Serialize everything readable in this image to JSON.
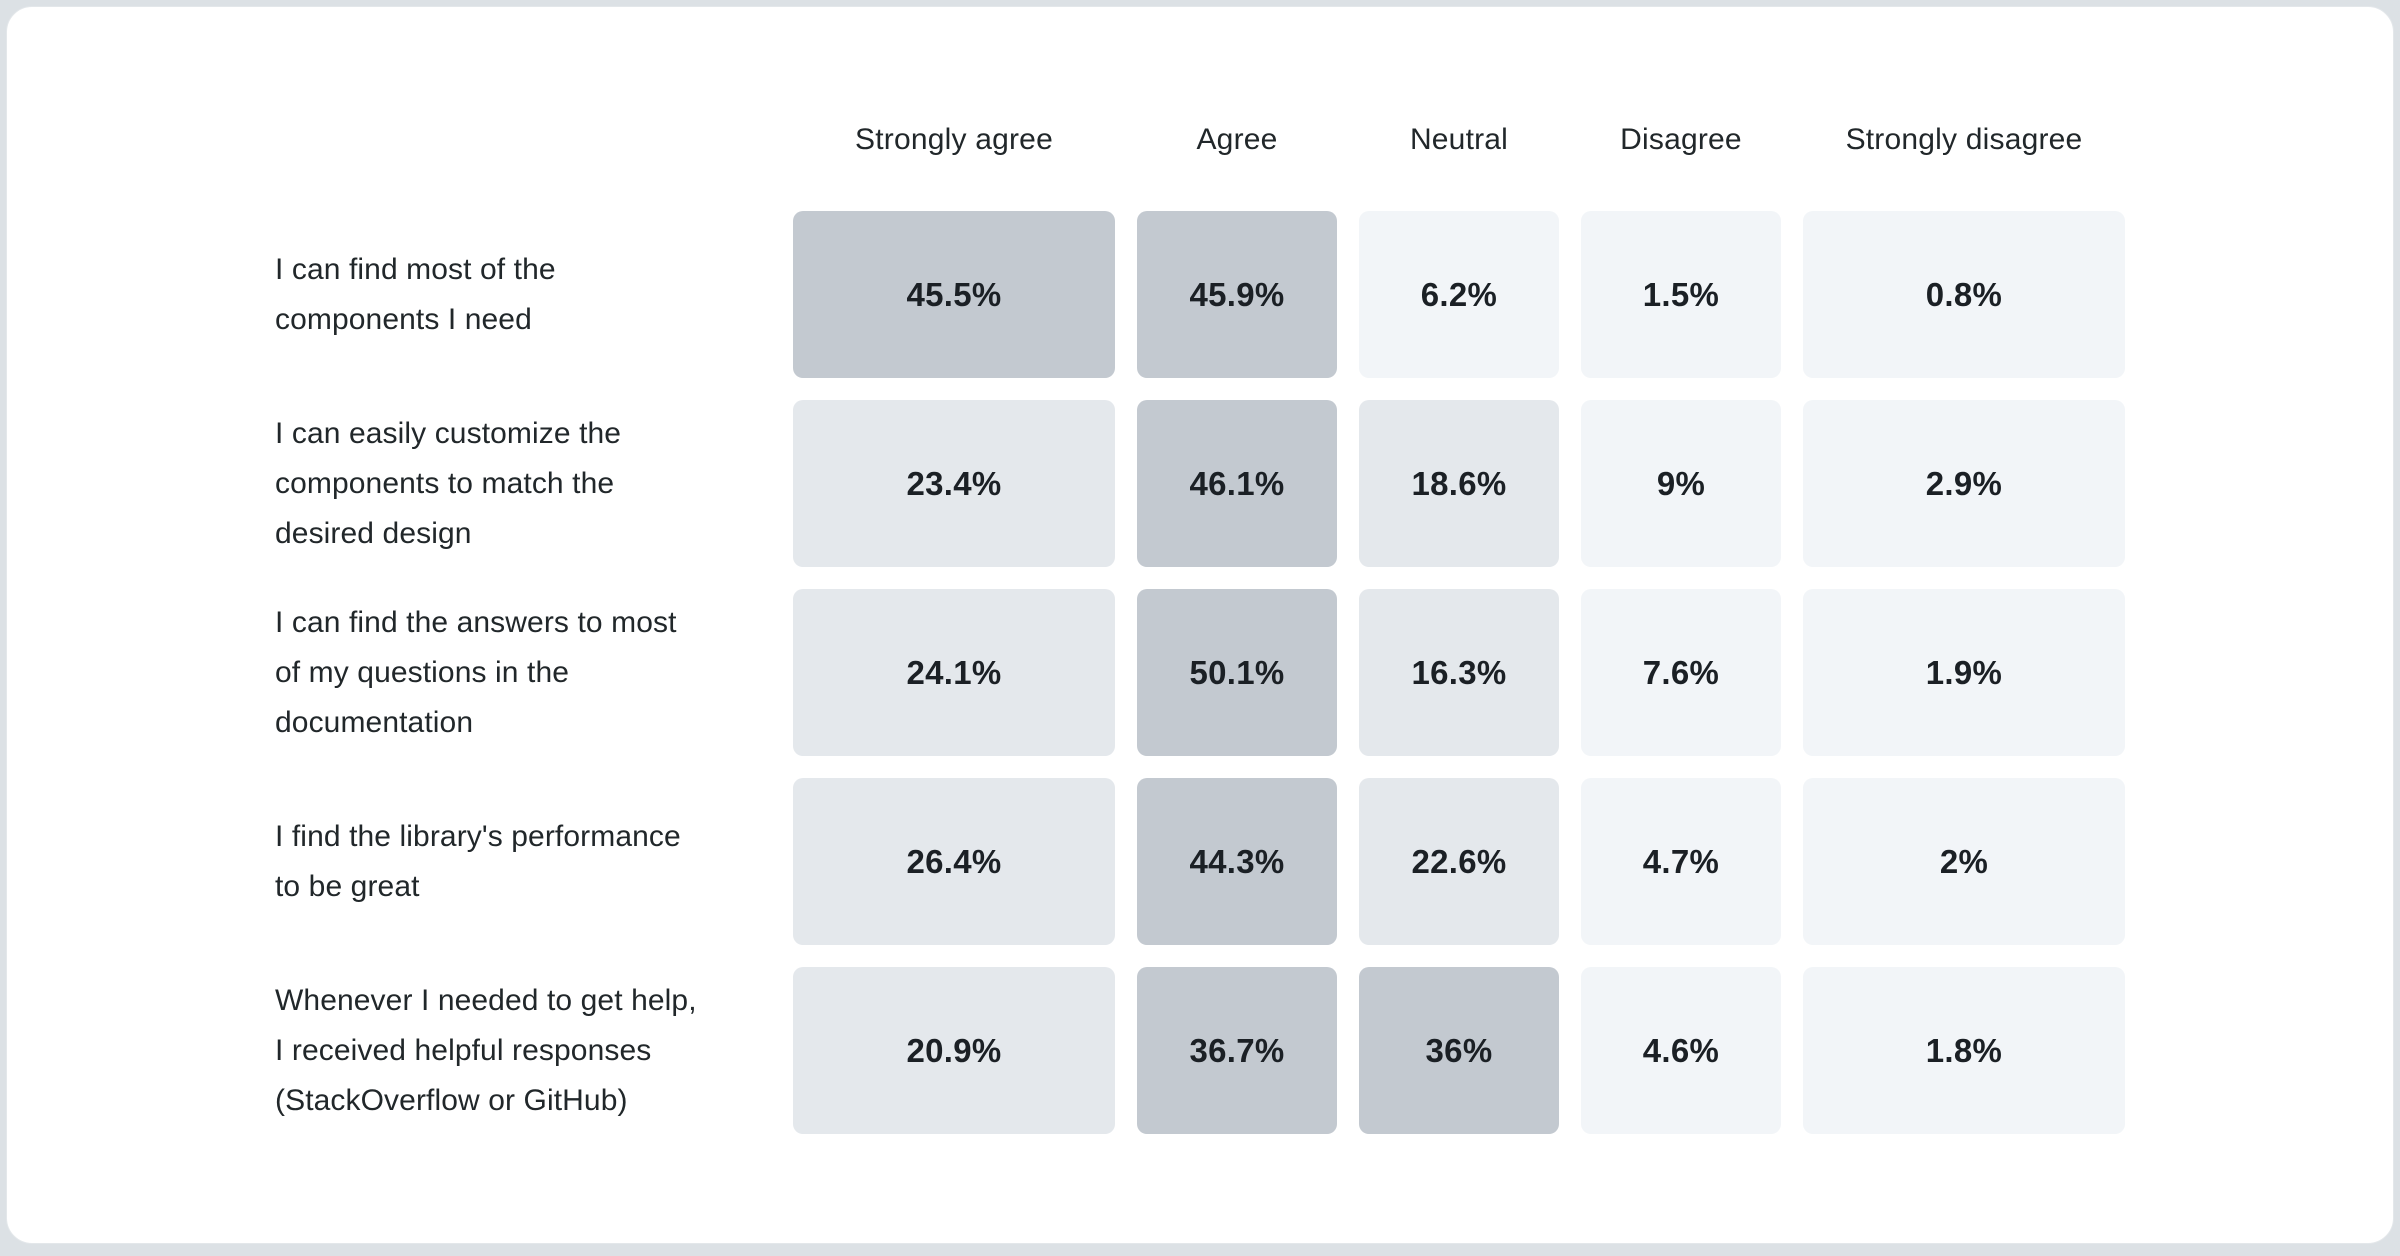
{
  "palette": {
    "page_bg": "#dce1e5",
    "card_bg": "#ffffff",
    "card_border": "#e3e7ea",
    "header_text": "#21272a",
    "label_text": "#21272a",
    "value_text": "#1b2025",
    "cell_light": "#f2f5f8",
    "cell_medium": "#e4e8ec",
    "cell_dark": "#c3c9d0"
  },
  "chart_data": {
    "type": "heatmap",
    "title": "",
    "value_unit": "%",
    "legend_position": "none",
    "grid": "off",
    "columns": [
      "Strongly agree",
      "Agree",
      "Neutral",
      "Disagree",
      "Strongly disagree"
    ],
    "rows": [
      {
        "label": "I can find most of the\ncomponents I need",
        "values": [
          45.5,
          45.9,
          6.2,
          1.5,
          0.8
        ],
        "display": [
          "45.5%",
          "45.9%",
          "6.2%",
          "1.5%",
          "0.8%"
        ]
      },
      {
        "label": "I can easily customize the\ncomponents to match the\ndesired design",
        "values": [
          23.4,
          46.1,
          18.6,
          9,
          2.9
        ],
        "display": [
          "23.4%",
          "46.1%",
          "18.6%",
          "9%",
          "2.9%"
        ]
      },
      {
        "label": "I can find the answers to most\nof my questions in the\ndocumentation",
        "values": [
          24.1,
          50.1,
          16.3,
          7.6,
          1.9
        ],
        "display": [
          "24.1%",
          "50.1%",
          "16.3%",
          "7.6%",
          "1.9%"
        ]
      },
      {
        "label": "I find the library's performance\nto be great",
        "values": [
          26.4,
          44.3,
          22.6,
          4.7,
          2
        ],
        "display": [
          "26.4%",
          "44.3%",
          "22.6%",
          "4.7%",
          "2%"
        ]
      },
      {
        "label": "Whenever I needed to get help,\nI received helpful responses\n(StackOverflow or GitHub)",
        "values": [
          20.9,
          36.7,
          36,
          4.6,
          1.8
        ],
        "display": [
          "20.9%",
          "36.7%",
          "36%",
          "4.6%",
          "1.8%"
        ]
      }
    ],
    "shade_thresholds": {
      "dark_min": 30,
      "medium_min": 15
    }
  }
}
